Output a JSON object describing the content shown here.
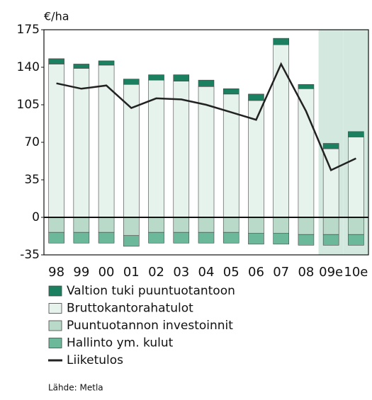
{
  "chart_data": {
    "type": "bar",
    "ylabel": "€/ha",
    "source": "Lähde: Metla",
    "categories": [
      "98",
      "99",
      "00",
      "01",
      "02",
      "03",
      "04",
      "05",
      "06",
      "07",
      "08",
      "09e",
      "10e"
    ],
    "shaded_categories": [
      "09e",
      "10e"
    ],
    "shade_color": "#d3e9df",
    "series": [
      {
        "name": "Valtion tuki puuntuotantoon",
        "color": "#1b8060",
        "values": [
          5,
          4,
          4,
          5,
          5,
          6,
          6,
          5,
          6,
          6,
          4,
          5,
          5
        ]
      },
      {
        "name": "Bruttokantorahatulot",
        "color": "#e6f2ec",
        "values": [
          143,
          139,
          142,
          124,
          128,
          127,
          122,
          115,
          109,
          161,
          120,
          64,
          75
        ]
      },
      {
        "name": "Puuntuotannon investoinnit",
        "color": "#b9d9c9",
        "values": [
          -14,
          -14,
          -14,
          -17,
          -14,
          -14,
          -14,
          -14,
          -15,
          -15,
          -16,
          -16,
          -16
        ]
      },
      {
        "name": "Hallinto ym. kulut",
        "color": "#6bb89b",
        "values": [
          -10,
          -10,
          -10,
          -10,
          -10,
          -10,
          -10,
          -10,
          -10,
          -10,
          -10,
          -10,
          -10
        ]
      },
      {
        "name": "Liiketulos",
        "type": "line",
        "color": "#222222",
        "values": [
          125,
          120,
          123,
          102,
          111,
          110,
          105,
          98,
          91,
          143,
          99,
          44,
          55
        ]
      }
    ],
    "ylim": [
      -35,
      175
    ],
    "yticks": [
      -35,
      0,
      35,
      70,
      105,
      140,
      175
    ]
  }
}
